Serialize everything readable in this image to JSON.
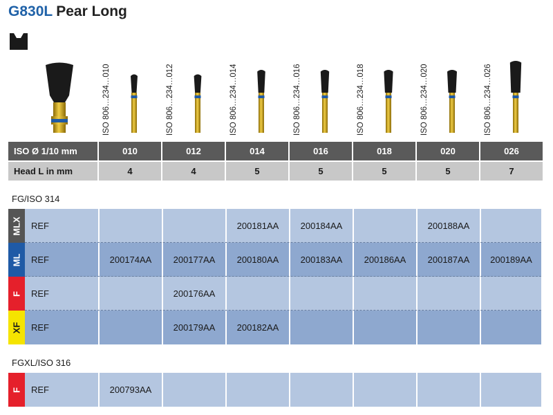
{
  "header": {
    "code": "G830L",
    "name": "Pear Long"
  },
  "icons": {
    "shank": "fg-shank-icon",
    "bur": "diamond-bur-icon"
  },
  "iso_labels": [
    "ISO 806…234…010",
    "ISO 806…234…012",
    "ISO 806…234…014",
    "ISO 806…234…016",
    "ISO 806…234…018",
    "ISO 806…234…020",
    "ISO 806…234…026"
  ],
  "dimensions": {
    "iso_label": "ISO Ø 1/10 mm",
    "iso_values": [
      "010",
      "012",
      "014",
      "016",
      "018",
      "020",
      "026"
    ],
    "head_label": "Head L in mm",
    "head_values": [
      "4",
      "4",
      "5",
      "5",
      "5",
      "5",
      "7"
    ]
  },
  "sections": [
    {
      "title": "FG/ISO 314",
      "rows": [
        {
          "grade": "MLX",
          "color": "#555555",
          "text_color": "#ffffff",
          "ref": "REF",
          "cells": [
            "",
            "",
            "200181AA",
            "200184AA",
            "",
            "200188AA",
            ""
          ]
        },
        {
          "grade": "ML",
          "color": "#1f5aa6",
          "text_color": "#ffffff",
          "ref": "REF",
          "cells": [
            "200174AA",
            "200177AA",
            "200180AA",
            "200183AA",
            "200186AA",
            "200187AA",
            "200189AA"
          ]
        },
        {
          "grade": "F",
          "color": "#e5202b",
          "text_color": "#ffffff",
          "ref": "REF",
          "cells": [
            "",
            "200176AA",
            "",
            "",
            "",
            "",
            ""
          ]
        },
        {
          "grade": "XF",
          "color": "#f5e400",
          "text_color": "#1a1a1a",
          "ref": "REF",
          "cells": [
            "",
            "200179AA",
            "200182AA",
            "",
            "",
            "",
            ""
          ]
        }
      ]
    },
    {
      "title": "FGXL/ISO 316",
      "rows": [
        {
          "grade": "F",
          "color": "#e5202b",
          "text_color": "#ffffff",
          "ref": "REF",
          "cells": [
            "200793AA",
            "",
            "",
            "",
            "",
            "",
            ""
          ]
        }
      ]
    }
  ],
  "colors": {
    "band": "#1f5aa6",
    "gold": "#d4a418",
    "head": "#1a1a1a"
  }
}
